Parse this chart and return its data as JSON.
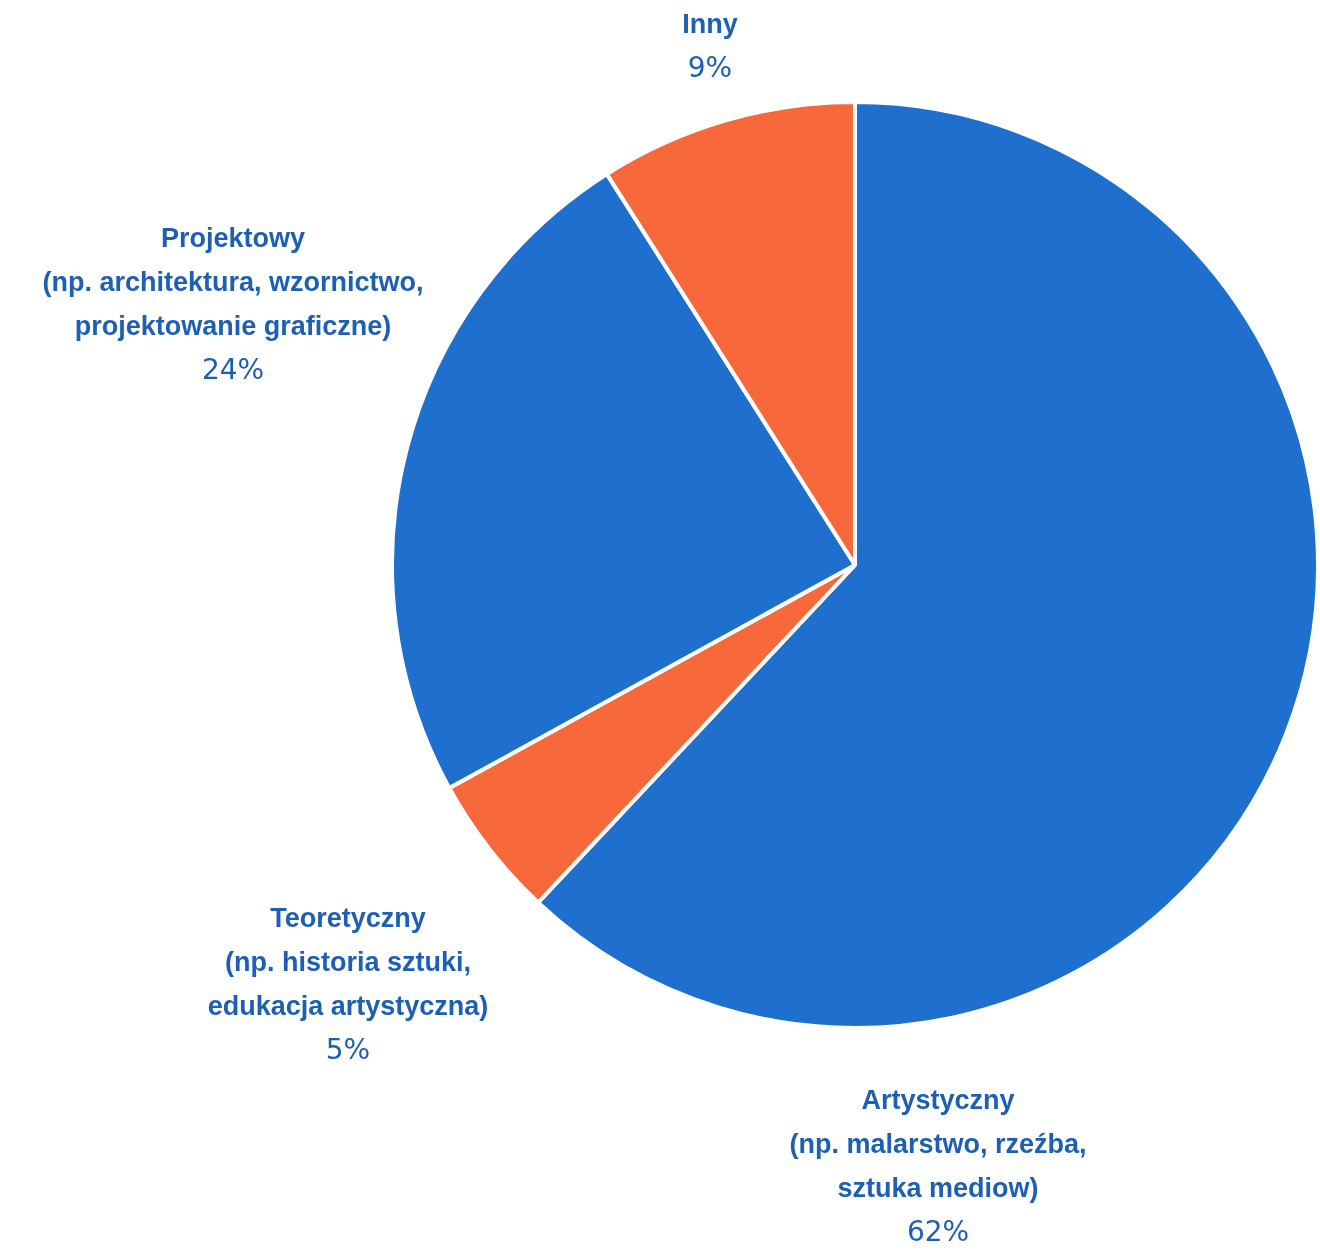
{
  "chart_data": {
    "type": "pie",
    "categories": [
      "Artystyczny (np. malarstwo, rzeźba, sztuka mediow)",
      "Teoretyczny (np. historia sztuki, edukacja artystyczna)",
      "Projektowy (np. architektura, wzornictwo, projektowanie graficzne)",
      "Inny"
    ],
    "values": [
      62,
      5,
      24,
      9
    ],
    "colors": [
      "#1f6fcf",
      "#f7683a",
      "#1f6fcf",
      "#f7683a"
    ],
    "value_labels": [
      "62%",
      "5%",
      "24%",
      "9%"
    ]
  }
}
